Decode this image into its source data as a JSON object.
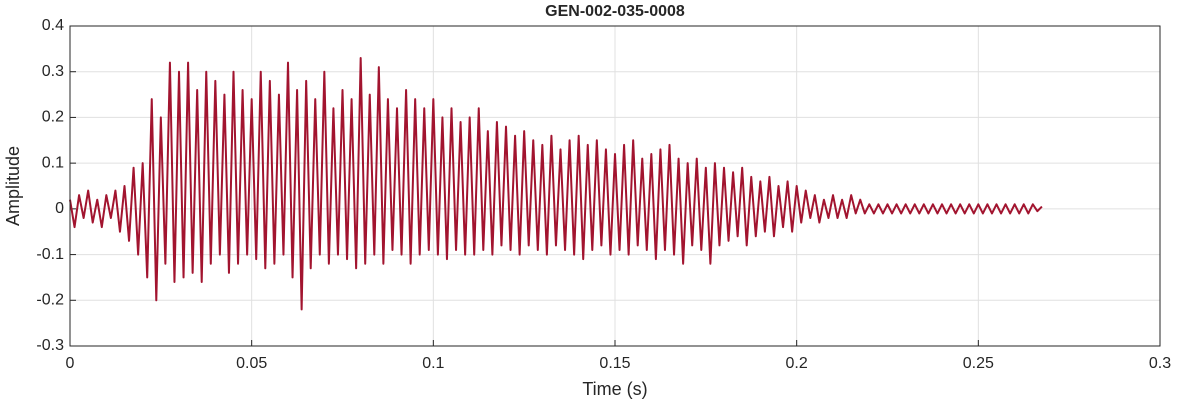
{
  "chart_data": {
    "type": "line",
    "title": "GEN-002-035-0008",
    "x_label": "Time (s)",
    "y_label": "Amplitude",
    "color": "#A2142F",
    "grid": true,
    "xlim": [
      0,
      0.3
    ],
    "xticks": [
      0,
      0.05,
      0.1,
      0.15,
      0.2,
      0.25,
      0.3
    ],
    "ylim": [
      -0.3,
      0.4
    ],
    "yticks": [
      -0.3,
      -0.2,
      -0.1,
      0,
      0.1,
      0.2,
      0.3,
      0.4
    ],
    "x": [
      0,
      0.00125,
      0.0025,
      0.00375,
      0.005,
      0.00625,
      0.0075,
      0.00875,
      0.01,
      0.01125,
      0.0125,
      0.01375,
      0.015,
      0.01625,
      0.0175,
      0.01875,
      0.02,
      0.02125,
      0.0225,
      0.02375,
      0.025,
      0.02625,
      0.0275,
      0.02875,
      0.03,
      0.03125,
      0.0325,
      0.03375,
      0.035,
      0.03625,
      0.0375,
      0.03875,
      0.04,
      0.04125,
      0.0425,
      0.04375,
      0.045,
      0.04625,
      0.0475,
      0.04875,
      0.05,
      0.05125,
      0.0525,
      0.05375,
      0.055,
      0.05625,
      0.0575,
      0.05875,
      0.06,
      0.06125,
      0.0625,
      0.06375,
      0.065,
      0.06625,
      0.0675,
      0.06875,
      0.07,
      0.07125,
      0.0725,
      0.07375,
      0.075,
      0.07625,
      0.0775,
      0.07875,
      0.08,
      0.08125,
      0.0825,
      0.08375,
      0.085,
      0.08625,
      0.0875,
      0.08875,
      0.09,
      0.09125,
      0.0925,
      0.09375,
      0.095,
      0.09625,
      0.0975,
      0.09875,
      0.1,
      0.10125,
      0.1025,
      0.10375,
      0.105,
      0.10625,
      0.1075,
      0.10875,
      0.11,
      0.11125,
      0.1125,
      0.11375,
      0.115,
      0.11625,
      0.1175,
      0.11875,
      0.12,
      0.12125,
      0.1225,
      0.12375,
      0.125,
      0.12625,
      0.1275,
      0.12875,
      0.13,
      0.13125,
      0.1325,
      0.13375,
      0.135,
      0.13625,
      0.1375,
      0.13875,
      0.14,
      0.14125,
      0.1425,
      0.14375,
      0.145,
      0.14625,
      0.1475,
      0.14875,
      0.15,
      0.15125,
      0.1525,
      0.15375,
      0.155,
      0.15625,
      0.1575,
      0.15875,
      0.16,
      0.16125,
      0.1625,
      0.16375,
      0.165,
      0.16625,
      0.1675,
      0.16875,
      0.17,
      0.17125,
      0.1725,
      0.17375,
      0.175,
      0.17625,
      0.1775,
      0.17875,
      0.18,
      0.18125,
      0.1825,
      0.18375,
      0.185,
      0.18625,
      0.1875,
      0.18875,
      0.19,
      0.19125,
      0.1925,
      0.19375,
      0.195,
      0.19625,
      0.1975,
      0.19875,
      0.2,
      0.20125,
      0.2025,
      0.20375,
      0.205,
      0.20625,
      0.2075,
      0.20875,
      0.21,
      0.21125,
      0.2125,
      0.21375,
      0.215,
      0.21625,
      0.2175,
      0.21875,
      0.22,
      0.22125,
      0.2225,
      0.22375,
      0.225,
      0.22625,
      0.2275,
      0.22875,
      0.23,
      0.23125,
      0.2325,
      0.23375,
      0.235,
      0.23625,
      0.2375,
      0.23875,
      0.24,
      0.24125,
      0.2425,
      0.24375,
      0.245,
      0.24625,
      0.2475,
      0.24875,
      0.25,
      0.25125,
      0.2525,
      0.25375,
      0.255,
      0.25625,
      0.2575,
      0.25875,
      0.26,
      0.26125,
      0.2625,
      0.26375,
      0.265,
      0.26625,
      0.2675
    ],
    "values": [
      0.02,
      -0.04,
      0.03,
      -0.02,
      0.04,
      -0.03,
      0.02,
      -0.04,
      0.03,
      -0.02,
      0.04,
      -0.05,
      0.05,
      -0.07,
      0.09,
      -0.1,
      0.1,
      -0.15,
      0.24,
      -0.2,
      0.2,
      -0.12,
      0.32,
      -0.16,
      0.3,
      -0.15,
      0.32,
      -0.14,
      0.26,
      -0.16,
      0.3,
      -0.12,
      0.28,
      -0.1,
      0.25,
      -0.14,
      0.3,
      -0.12,
      0.26,
      -0.1,
      0.24,
      -0.11,
      0.3,
      -0.13,
      0.28,
      -0.12,
      0.25,
      -0.1,
      0.32,
      -0.15,
      0.26,
      -0.22,
      0.28,
      -0.13,
      0.24,
      -0.1,
      0.3,
      -0.12,
      0.22,
      -0.1,
      0.26,
      -0.11,
      0.24,
      -0.13,
      0.33,
      -0.12,
      0.25,
      -0.1,
      0.31,
      -0.12,
      0.24,
      -0.09,
      0.22,
      -0.1,
      0.26,
      -0.12,
      0.24,
      -0.1,
      0.22,
      -0.09,
      0.24,
      -0.1,
      0.2,
      -0.11,
      0.22,
      -0.09,
      0.19,
      -0.1,
      0.2,
      -0.1,
      0.22,
      -0.09,
      0.17,
      -0.1,
      0.19,
      -0.08,
      0.18,
      -0.09,
      0.16,
      -0.1,
      0.17,
      -0.08,
      0.15,
      -0.09,
      0.14,
      -0.1,
      0.16,
      -0.08,
      0.13,
      -0.09,
      0.15,
      -0.1,
      0.16,
      -0.11,
      0.14,
      -0.09,
      0.15,
      -0.08,
      0.13,
      -0.1,
      0.12,
      -0.09,
      0.14,
      -0.1,
      0.15,
      -0.08,
      0.11,
      -0.09,
      0.12,
      -0.11,
      0.13,
      -0.09,
      0.14,
      -0.1,
      0.11,
      -0.12,
      0.1,
      -0.08,
      0.11,
      -0.09,
      0.09,
      -0.12,
      0.1,
      -0.08,
      0.09,
      -0.07,
      0.08,
      -0.06,
      0.09,
      -0.08,
      0.07,
      -0.06,
      0.06,
      -0.05,
      0.07,
      -0.06,
      0.05,
      -0.04,
      0.06,
      -0.05,
      0.05,
      -0.03,
      0.04,
      -0.02,
      0.03,
      -0.03,
      0.02,
      -0.02,
      0.03,
      -0.02,
      0.02,
      -0.02,
      0.03,
      -0.01,
      0.02,
      -0.01,
      0.01,
      -0.01,
      0.01,
      -0.01,
      0.01,
      -0.01,
      0.01,
      -0.01,
      0.01,
      -0.01,
      0.01,
      -0.01,
      0.01,
      -0.01,
      0.01,
      -0.01,
      0.01,
      -0.01,
      0.01,
      -0.01,
      0.01,
      -0.01,
      0.01,
      -0.01,
      0.01,
      -0.01,
      0.01,
      -0.01,
      0.01,
      -0.01,
      0.01,
      -0.01,
      0.01,
      -0.01,
      0.01,
      -0.01,
      0.01,
      -0.005,
      0.005
    ]
  }
}
